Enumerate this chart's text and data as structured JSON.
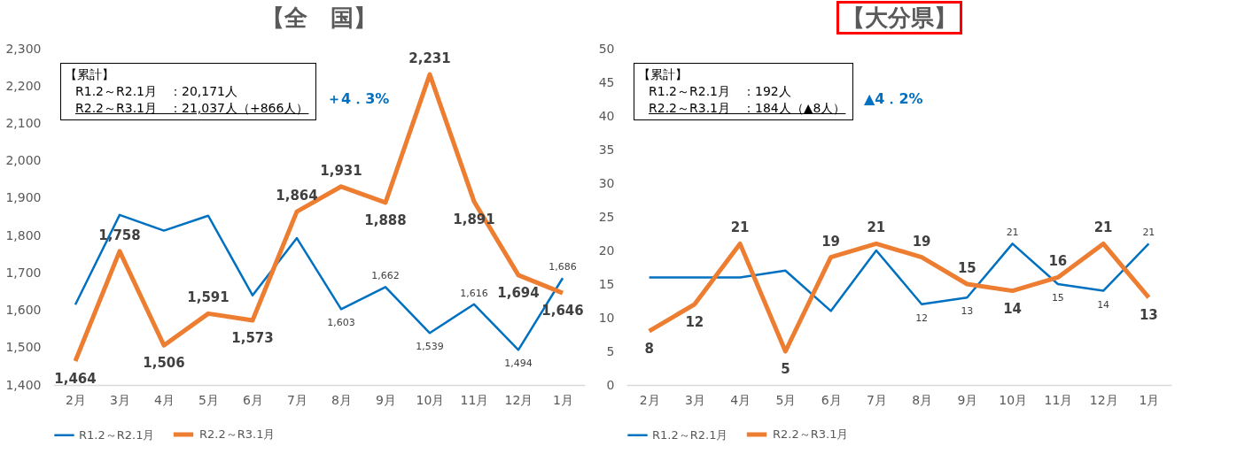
{
  "chart_data": [
    {
      "type": "line",
      "title": "【全　国】",
      "categories": [
        "2月",
        "3月",
        "4月",
        "5月",
        "6月",
        "7月",
        "8月",
        "9月",
        "10月",
        "11月",
        "12月",
        "1月"
      ],
      "series": [
        {
          "name": "R1.2～R2.1月",
          "color": "#0070c0",
          "values": [
            1615,
            1855,
            1813,
            1853,
            1640,
            1793,
            1603,
            1662,
            1539,
            1616,
            1494,
            1686
          ],
          "value_labels": [
            null,
            null,
            null,
            null,
            null,
            null,
            "1,603",
            "1,662",
            "1,539",
            "1,616",
            "1,494",
            "1,686"
          ]
        },
        {
          "name": "R2.2～R3.1月",
          "color": "#ed7d31",
          "values": [
            1464,
            1758,
            1506,
            1591,
            1573,
            1864,
            1931,
            1888,
            2231,
            1891,
            1694,
            1646
          ],
          "value_labels": [
            "1,464",
            "1,758",
            "1,506",
            "1,591",
            "1,573",
            "1,864",
            "1,931",
            "1,888",
            "2,231",
            "1,891",
            "1,694",
            "1,646"
          ]
        }
      ],
      "ylim": [
        1400,
        2300
      ],
      "yticks": [
        {
          "value": 1400,
          "label": "1,400"
        },
        {
          "value": 1500,
          "label": "1,500"
        },
        {
          "value": 1600,
          "label": "1,600"
        },
        {
          "value": 1700,
          "label": "1,700"
        },
        {
          "value": 1800,
          "label": "1,800"
        },
        {
          "value": 1900,
          "label": "1,900"
        },
        {
          "value": 2000,
          "label": "2,000"
        },
        {
          "value": 2100,
          "label": "2,100"
        },
        {
          "value": 2200,
          "label": "2,200"
        },
        {
          "value": 2300,
          "label": "2,300"
        }
      ],
      "grid": false,
      "legend": "bottom",
      "annotations": [
        "【累計】",
        "R1.2～R2.1月　：20,171人",
        "R2.2～R3.1月　：21,037人（+866人）",
        "＋4．3%"
      ]
    },
    {
      "type": "line",
      "title": "【大分県】",
      "categories": [
        "2月",
        "3月",
        "4月",
        "5月",
        "6月",
        "7月",
        "8月",
        "9月",
        "10月",
        "11月",
        "12月",
        "1月"
      ],
      "series": [
        {
          "name": "R1.2～R2.1月",
          "color": "#0070c0",
          "values": [
            16,
            16,
            16,
            17,
            11,
            20,
            12,
            13,
            21,
            15,
            14,
            21
          ],
          "value_labels": [
            null,
            null,
            null,
            null,
            null,
            null,
            "12",
            "13",
            "21",
            "15",
            "14",
            "21"
          ]
        },
        {
          "name": "R2.2～R3.1月",
          "color": "#ed7d31",
          "values": [
            8,
            12,
            21,
            5,
            19,
            21,
            19,
            15,
            14,
            16,
            21,
            13
          ],
          "value_labels": [
            "8",
            "12",
            "21",
            "5",
            "19",
            "21",
            "19",
            "15",
            "14",
            "16",
            "21",
            "13"
          ]
        }
      ],
      "ylim": [
        0,
        50
      ],
      "yticks": [
        0,
        5,
        10,
        15,
        20,
        25,
        30,
        35,
        40,
        45,
        50
      ],
      "grid": false,
      "legend": "bottom",
      "annotations": [
        "【累計】",
        "R1.2～R2.1月　：192人",
        "R2.2～R3.1月　：184人（▲8人）",
        "▲4．2%"
      ]
    }
  ]
}
